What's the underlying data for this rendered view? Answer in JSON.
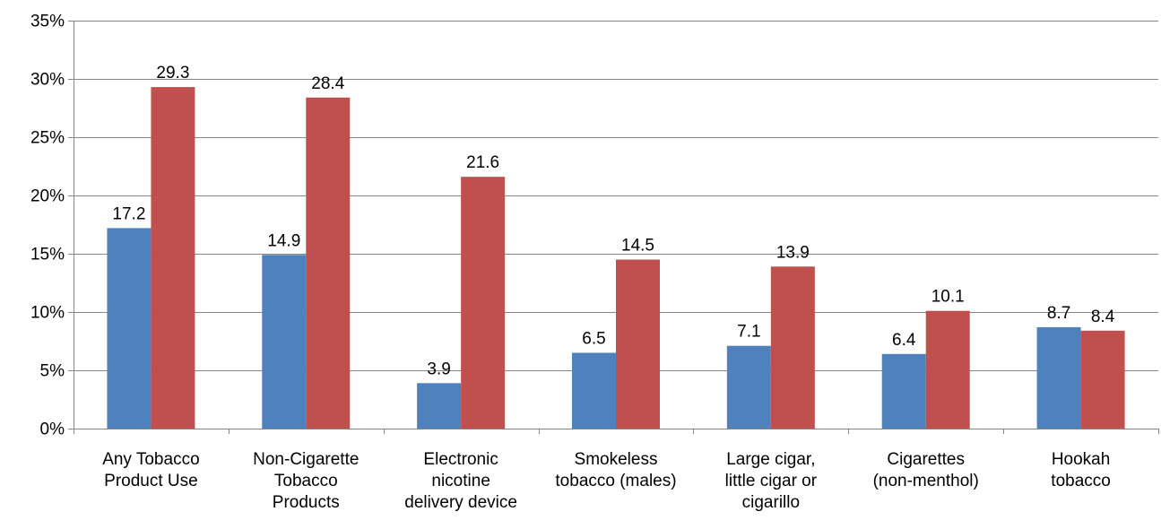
{
  "chart_data": {
    "type": "bar",
    "title": "",
    "xlabel": "",
    "ylabel": "",
    "ylim": [
      0,
      35
    ],
    "yticks": [
      0,
      5,
      10,
      15,
      20,
      25,
      30,
      35
    ],
    "ytick_labels": [
      "0%",
      "5%",
      "10%",
      "15%",
      "20%",
      "25%",
      "30%",
      "35%"
    ],
    "grid": true,
    "legend": "none",
    "categories": [
      [
        "Any Tobacco",
        "Product Use"
      ],
      [
        "Non-Cigarette",
        "Tobacco",
        "Products"
      ],
      [
        "Electronic",
        "nicotine",
        "delivery device"
      ],
      [
        "Smokeless",
        "tobacco (males)"
      ],
      [
        "Large cigar,",
        "little cigar or",
        "cigarillo"
      ],
      [
        "Cigarettes",
        "(non-menthol)"
      ],
      [
        "Hookah",
        "tobacco"
      ]
    ],
    "series": [
      {
        "values": [
          17.2,
          14.9,
          3.9,
          6.5,
          7.1,
          6.4,
          8.7
        ],
        "color": "#4F81BD"
      },
      {
        "values": [
          29.3,
          28.4,
          21.6,
          14.5,
          13.9,
          10.1,
          8.4
        ],
        "color": "#C0504D"
      }
    ],
    "data_labels": [
      [
        "17.2",
        "14.9",
        "3.9",
        "6.5",
        "7.1",
        "6.4",
        "8.7"
      ],
      [
        "29.3",
        "28.4",
        "21.6",
        "14.5",
        "13.9",
        "10.1",
        "8.4"
      ]
    ]
  }
}
